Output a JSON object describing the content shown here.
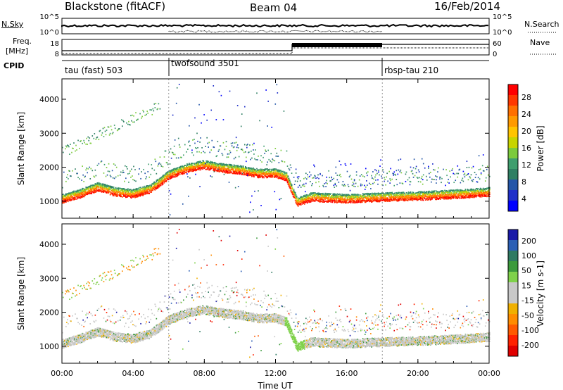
{
  "header": {
    "station": "Blackstone (fitACF)",
    "beam": "Beam 04",
    "date": "16/Feb/2014"
  },
  "status_panels": {
    "nsky_label": "N.Sky",
    "nsearch_label": "N.Search",
    "nsky_ticks": [
      "10^5",
      "10^0"
    ],
    "freq_label_1": "Freq.",
    "freq_label_2": "[MHz]",
    "freq_ticks": [
      "18",
      "8"
    ],
    "nave_label": "Nave",
    "nave_ticks": [
      "60",
      "0"
    ],
    "cpid_label": "CPID",
    "programs": [
      {
        "name": "tau (fast) 503",
        "start_hour": 0
      },
      {
        "name": "twofsound 3501",
        "start_hour": 6
      },
      {
        "name": "rbsp-tau 210",
        "start_hour": 18
      }
    ]
  },
  "x_axis": {
    "label": "Time UT",
    "ticks": [
      "00:00",
      "04:00",
      "08:00",
      "12:00",
      "16:00",
      "20:00",
      "00:00"
    ]
  },
  "chart_data": [
    {
      "type": "heatmap",
      "title": "",
      "xlabel": "Time UT",
      "ylabel": "Slant Range [km]",
      "xlim": [
        0,
        24
      ],
      "ylim": [
        500,
        4600
      ],
      "y_ticks": [
        1000,
        2000,
        3000,
        4000
      ],
      "colorbar": {
        "label": "Power [dB]",
        "ticks": [
          "28",
          "24",
          "20",
          "16",
          "12",
          "8",
          "4"
        ],
        "colors": [
          "#ff0000",
          "#ff3800",
          "#ff7000",
          "#ff9a00",
          "#ffc400",
          "#c8d400",
          "#7ccb3c",
          "#3f9e6e",
          "#2f7f63",
          "#2456a8",
          "#1f2fc9",
          "#0000ff"
        ]
      },
      "bands": [
        {
          "name": "lower",
          "points": [
            [
              0,
              1000
            ],
            [
              1,
              1150
            ],
            [
              2,
              1350
            ],
            [
              3,
              1200
            ],
            [
              4,
              1150
            ],
            [
              5,
              1300
            ],
            [
              6,
              1700
            ],
            [
              7,
              1900
            ],
            [
              8,
              2000
            ],
            [
              9,
              1900
            ],
            [
              10,
              1850
            ],
            [
              11,
              1750
            ],
            [
              12,
              1750
            ],
            [
              12.6,
              1650
            ],
            [
              13.2,
              900
            ],
            [
              14,
              1050
            ],
            [
              16,
              1000
            ],
            [
              18,
              1050
            ],
            [
              20,
              1080
            ],
            [
              22,
              1130
            ],
            [
              24,
              1200
            ]
          ]
        }
      ]
    },
    {
      "type": "heatmap",
      "title": "",
      "xlabel": "Time UT",
      "ylabel": "Slant Range [km]",
      "xlim": [
        0,
        24
      ],
      "ylim": [
        500,
        4600
      ],
      "y_ticks": [
        1000,
        2000,
        3000,
        4000
      ],
      "colorbar": {
        "label": "Velocity [m s-1]",
        "ticks": [
          "200",
          "100",
          "50",
          "15",
          "-15",
          "-50",
          "-100",
          "-200"
        ],
        "colors": [
          "#1a1aa8",
          "#2c5fb5",
          "#2f7a62",
          "#3c9a3c",
          "#7fd14a",
          "#c8c8c8",
          "#c8c8c8",
          "#f0b000",
          "#ff8c00",
          "#ff5a00",
          "#ff2200",
          "#e00000"
        ]
      }
    }
  ]
}
